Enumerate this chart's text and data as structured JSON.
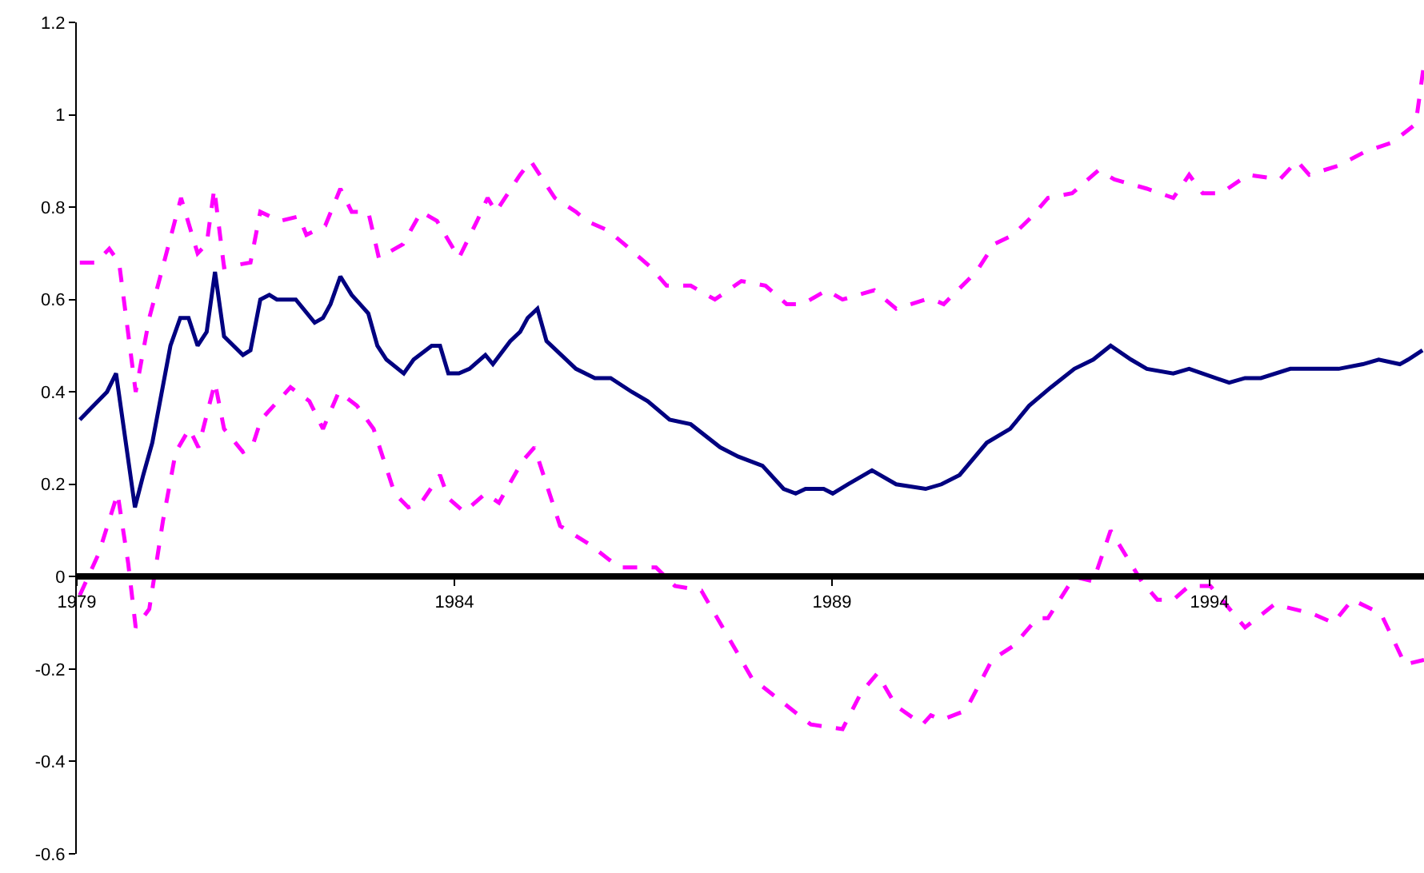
{
  "chart_data": {
    "type": "line",
    "xlim": [
      1979,
      1996.84
    ],
    "xticks": [
      1979,
      1984,
      1989,
      1994
    ],
    "ylim": [
      -0.6,
      1.2
    ],
    "yticks": [
      -0.6,
      -0.4,
      -0.2,
      0,
      0.2,
      0.4,
      0.6,
      0.8,
      1,
      1.2
    ],
    "series": [
      {
        "color": "#000080",
        "line_style": "solid",
        "x": [
          1979.04,
          1979.4,
          1979.52,
          1979.77,
          1979.88,
          1980.0,
          1980.24,
          1980.37,
          1980.48,
          1980.6,
          1980.72,
          1980.83,
          1980.95,
          1981.2,
          1981.3,
          1981.43,
          1981.55,
          1981.65,
          1981.9,
          1982.15,
          1982.26,
          1982.36,
          1982.49,
          1982.64,
          1982.75,
          1982.86,
          1982.98,
          1983.1,
          1983.33,
          1983.46,
          1983.7,
          1983.81,
          1983.92,
          1984.06,
          1984.2,
          1984.41,
          1984.51,
          1984.74,
          1984.87,
          1984.97,
          1985.1,
          1985.22,
          1985.61,
          1985.86,
          1985.96,
          1986.07,
          1986.35,
          1986.56,
          1986.85,
          1987.13,
          1987.52,
          1987.76,
          1988.08,
          1988.36,
          1988.52,
          1988.65,
          1988.89,
          1989.01,
          1989.21,
          1989.53,
          1989.85,
          1990.24,
          1990.45,
          1990.69,
          1991.05,
          1991.36,
          1991.61,
          1991.9,
          1992.21,
          1992.46,
          1992.69,
          1992.96,
          1993.17,
          1993.52,
          1993.73,
          1994.26,
          1994.47,
          1994.68,
          1995.07,
          1995.43,
          1995.71,
          1996.03,
          1996.24,
          1996.52,
          1996.63,
          1996.82
        ],
        "values": [
          0.34,
          0.4,
          0.44,
          0.15,
          0.22,
          0.29,
          0.5,
          0.56,
          0.56,
          0.5,
          0.53,
          0.66,
          0.52,
          0.48,
          0.49,
          0.6,
          0.61,
          0.6,
          0.6,
          0.55,
          0.56,
          0.59,
          0.65,
          0.61,
          0.59,
          0.57,
          0.5,
          0.47,
          0.44,
          0.47,
          0.5,
          0.5,
          0.44,
          0.44,
          0.45,
          0.48,
          0.46,
          0.51,
          0.53,
          0.56,
          0.58,
          0.51,
          0.45,
          0.43,
          0.43,
          0.43,
          0.4,
          0.38,
          0.34,
          0.33,
          0.28,
          0.26,
          0.24,
          0.19,
          0.18,
          0.19,
          0.19,
          0.18,
          0.2,
          0.23,
          0.2,
          0.19,
          0.2,
          0.22,
          0.29,
          0.32,
          0.37,
          0.41,
          0.45,
          0.47,
          0.5,
          0.47,
          0.45,
          0.44,
          0.45,
          0.42,
          0.43,
          0.43,
          0.45,
          0.45,
          0.45,
          0.46,
          0.47,
          0.46,
          0.47,
          0.49
        ]
      },
      {
        "color": "#ff00ff",
        "line_style": "dashed",
        "x": [
          1979.04,
          1979.25,
          1979.43,
          1979.56,
          1979.78,
          1979.96,
          1980.38,
          1980.6,
          1980.72,
          1980.82,
          1980.95,
          1981.3,
          1981.43,
          1981.69,
          1981.94,
          1982.04,
          1982.29,
          1982.49,
          1982.64,
          1982.86,
          1983.0,
          1983.32,
          1983.56,
          1983.77,
          1984.06,
          1984.3,
          1984.44,
          1984.55,
          1984.87,
          1985.01,
          1985.33,
          1985.61,
          1985.75,
          1986.03,
          1986.25,
          1986.6,
          1986.81,
          1987.13,
          1987.45,
          1987.8,
          1988.12,
          1988.4,
          1988.61,
          1988.93,
          1989.14,
          1989.56,
          1989.85,
          1990.24,
          1990.34,
          1990.48,
          1990.91,
          1991.15,
          1991.4,
          1991.65,
          1991.86,
          1992.18,
          1992.53,
          1992.74,
          1993.17,
          1993.52,
          1993.73,
          1993.91,
          1994.15,
          1994.51,
          1994.93,
          1995.16,
          1995.32,
          1995.71,
          1996.06,
          1996.42,
          1996.73,
          1996.84
        ],
        "values": [
          0.68,
          0.68,
          0.71,
          0.68,
          0.4,
          0.56,
          0.82,
          0.7,
          0.72,
          0.84,
          0.67,
          0.68,
          0.79,
          0.77,
          0.78,
          0.74,
          0.76,
          0.84,
          0.79,
          0.79,
          0.69,
          0.72,
          0.79,
          0.77,
          0.69,
          0.77,
          0.82,
          0.79,
          0.87,
          0.9,
          0.82,
          0.79,
          0.77,
          0.75,
          0.72,
          0.67,
          0.63,
          0.63,
          0.6,
          0.64,
          0.63,
          0.59,
          0.59,
          0.62,
          0.6,
          0.62,
          0.58,
          0.6,
          0.6,
          0.59,
          0.66,
          0.72,
          0.74,
          0.78,
          0.82,
          0.83,
          0.88,
          0.86,
          0.84,
          0.82,
          0.87,
          0.83,
          0.83,
          0.87,
          0.86,
          0.9,
          0.87,
          0.89,
          0.92,
          0.94,
          0.98,
          1.11
        ]
      },
      {
        "color": "#ff00ff",
        "line_style": "dashed",
        "x": [
          1979.04,
          1979.29,
          1979.54,
          1979.68,
          1979.78,
          1979.96,
          1980.14,
          1980.31,
          1980.49,
          1980.61,
          1980.83,
          1980.95,
          1981.2,
          1981.32,
          1981.44,
          1981.83,
          1982.08,
          1982.26,
          1982.47,
          1982.71,
          1982.93,
          1983.21,
          1983.39,
          1983.56,
          1983.81,
          1983.92,
          1984.13,
          1984.41,
          1984.59,
          1984.9,
          1985.06,
          1985.4,
          1985.79,
          1986.18,
          1986.67,
          1986.92,
          1987.27,
          1987.73,
          1987.94,
          1988.33,
          1988.72,
          1989.14,
          1989.39,
          1989.6,
          1989.85,
          1990.2,
          1990.31,
          1990.45,
          1990.77,
          1991.12,
          1991.4,
          1991.72,
          1991.86,
          1992.21,
          1992.46,
          1992.69,
          1993.1,
          1993.31,
          1993.52,
          1993.73,
          1994.01,
          1994.47,
          1994.86,
          1995.36,
          1995.64,
          1995.89,
          1996.27,
          1996.59,
          1996.84
        ],
        "values": [
          -0.04,
          0.05,
          0.18,
          0.03,
          -0.11,
          -0.07,
          0.12,
          0.27,
          0.32,
          0.28,
          0.42,
          0.32,
          0.27,
          0.28,
          0.34,
          0.41,
          0.38,
          0.32,
          0.4,
          0.37,
          0.32,
          0.18,
          0.15,
          0.16,
          0.22,
          0.17,
          0.14,
          0.18,
          0.16,
          0.25,
          0.28,
          0.11,
          0.07,
          0.02,
          0.02,
          -0.02,
          -0.03,
          -0.16,
          -0.22,
          -0.27,
          -0.32,
          -0.33,
          -0.25,
          -0.21,
          -0.28,
          -0.32,
          -0.3,
          -0.31,
          -0.29,
          -0.18,
          -0.15,
          -0.09,
          -0.09,
          0.0,
          -0.01,
          0.1,
          -0.01,
          -0.05,
          -0.05,
          -0.02,
          -0.02,
          -0.11,
          -0.06,
          -0.08,
          -0.1,
          -0.05,
          -0.08,
          -0.19,
          -0.18
        ]
      }
    ]
  }
}
